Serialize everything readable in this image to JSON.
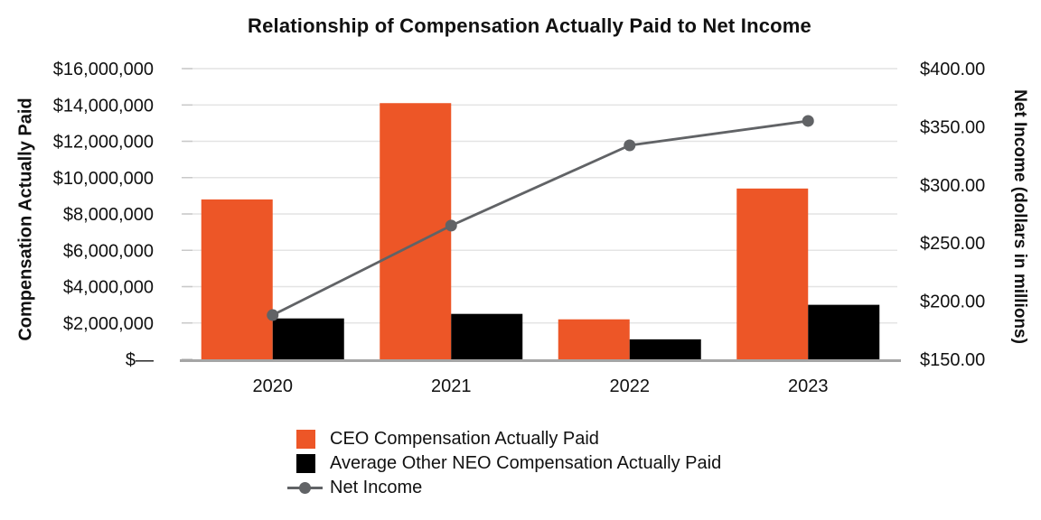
{
  "chart_data": {
    "type": "bar",
    "subtype": "combo-bar-line",
    "title": "Relationship of Compensation Actually Paid to Net Income",
    "categories": [
      "2020",
      "2021",
      "2022",
      "2023"
    ],
    "series": [
      {
        "name": "CEO Compensation Actually Paid",
        "kind": "bar",
        "axis": "left",
        "color": "#ED5627",
        "values": [
          8800000,
          14100000,
          2200000,
          9400000
        ]
      },
      {
        "name": "Average Other NEO Compensation Actually Paid",
        "kind": "bar",
        "axis": "left",
        "color": "#000000",
        "values": [
          2250000,
          2500000,
          1100000,
          3000000
        ]
      },
      {
        "name": "Net Income",
        "kind": "line",
        "axis": "right",
        "color": "#616366",
        "values": [
          188,
          265,
          334,
          355
        ]
      }
    ],
    "left_axis": {
      "label": "Compensation Actually Paid",
      "min": 0,
      "max": 16000000,
      "tick_values": [
        16000000,
        14000000,
        12000000,
        10000000,
        8000000,
        6000000,
        4000000,
        2000000,
        0
      ],
      "tick_labels": [
        "$16,000,000",
        "$14,000,000",
        "$12,000,000",
        "$10,000,000",
        "$8,000,000",
        "$6,000,000",
        "$4,000,000",
        "$2,000,000",
        "$—"
      ]
    },
    "right_axis": {
      "label": "Net Income (dollars in millions)",
      "min": 150,
      "max": 400,
      "tick_values": [
        400,
        350,
        300,
        250,
        200,
        150
      ],
      "tick_labels": [
        "$400.00",
        "$350.00",
        "$300.00",
        "$250.00",
        "$200.00",
        "$150.00"
      ]
    },
    "legend": {
      "position": "bottom-left",
      "entries": [
        "CEO Compensation Actually Paid",
        "Average Other NEO Compensation Actually Paid",
        "Net Income"
      ]
    },
    "grid": true,
    "colors": {
      "grid": "#E4E4E4",
      "tick": "#C9C9C9",
      "baseline": "#A5A5A5",
      "text": "#111111"
    }
  }
}
